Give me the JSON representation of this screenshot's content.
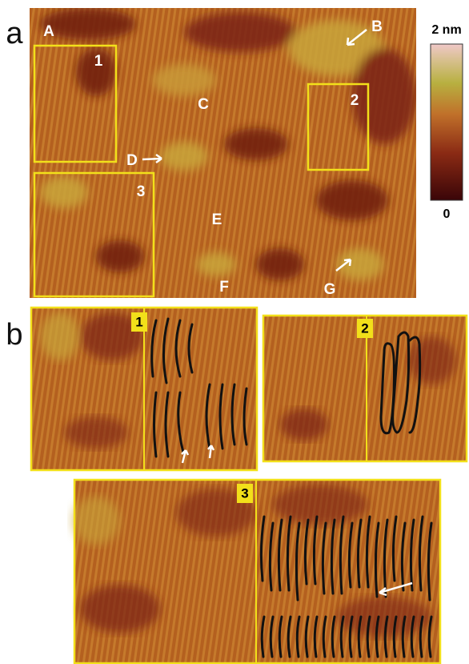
{
  "panel_a": {
    "label": "a",
    "regions": [
      "A",
      "B",
      "C",
      "D",
      "E",
      "F",
      "G"
    ],
    "boxes": [
      "1",
      "2",
      "3"
    ]
  },
  "colorbar": {
    "max": "2 nm",
    "min": "0"
  },
  "panel_b": {
    "label": "b",
    "insets": [
      "1",
      "2",
      "3"
    ]
  }
}
